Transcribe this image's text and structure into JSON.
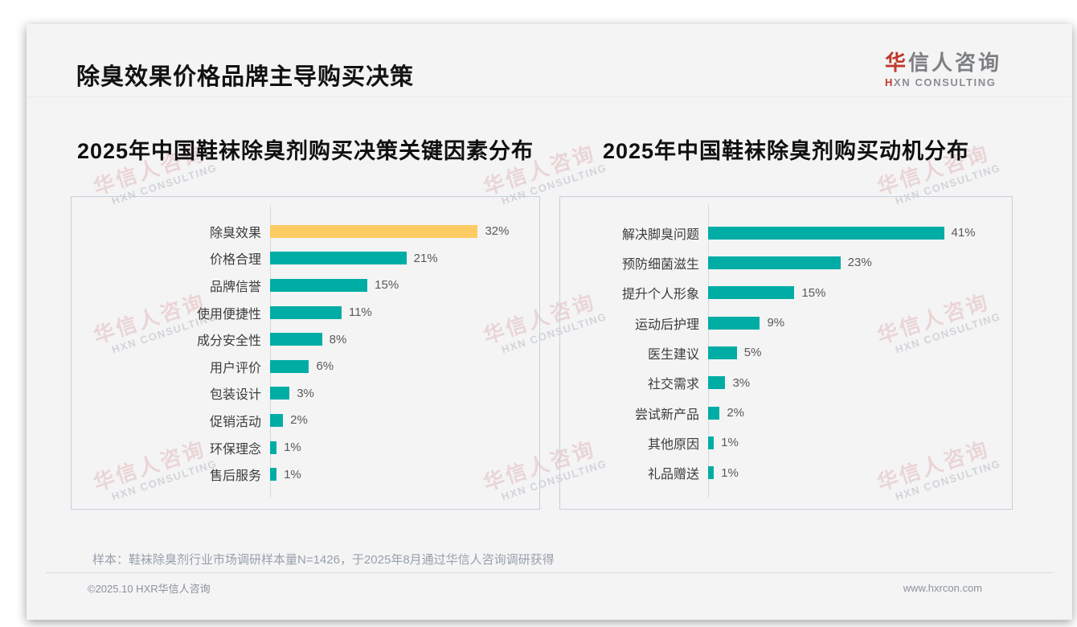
{
  "header": {
    "title": "除臭效果价格品牌主导购买决策",
    "logo": {
      "cn_accent": "华",
      "cn_rest": "信人咨询",
      "en_accent": "H",
      "en_rest": "XN CONSULTING"
    }
  },
  "watermark": {
    "line1": "华信人咨询",
    "line2": "HXN CONSULTING"
  },
  "colors": {
    "bar_teal": "#00ADA4",
    "bar_highlight": "#FCCC62",
    "brand_red": "#C0392B"
  },
  "chart_data": [
    {
      "type": "bar",
      "orientation": "horizontal",
      "title": "2025年中国鞋袜除臭剂购买决策关键因素分布",
      "categories": [
        "除臭效果",
        "价格合理",
        "品牌信誉",
        "使用便捷性",
        "成分安全性",
        "用户评价",
        "包装设计",
        "促销活动",
        "环保理念",
        "售后服务"
      ],
      "values": [
        32,
        21,
        15,
        11,
        8,
        6,
        3,
        2,
        1,
        1
      ],
      "value_labels": [
        "32%",
        "21%",
        "15%",
        "11%",
        "8%",
        "6%",
        "3%",
        "2%",
        "1%",
        "1%"
      ],
      "unit": "%",
      "highlight_index": 0,
      "bar_color": "#00ADA4",
      "highlight_color": "#FCCC62",
      "xlim": [
        0,
        39
      ],
      "grid": false,
      "value_label_position": "end-of-bar"
    },
    {
      "type": "bar",
      "orientation": "horizontal",
      "title": "2025年中国鞋袜除臭剂购买动机分布",
      "categories": [
        "解决脚臭问题",
        "预防细菌滋生",
        "提升个人形象",
        "运动后护理",
        "医生建议",
        "社交需求",
        "尝试新产品",
        "其他原因",
        "礼品赠送"
      ],
      "values": [
        41,
        23,
        15,
        9,
        5,
        3,
        2,
        1,
        1
      ],
      "value_labels": [
        "41%",
        "23%",
        "15%",
        "9%",
        "5%",
        "3%",
        "2%",
        "1%",
        "1%"
      ],
      "unit": "%",
      "highlight_index": null,
      "bar_color": "#00ADA4",
      "highlight_color": "#FCCC62",
      "xlim": [
        0,
        50
      ],
      "grid": false,
      "value_label_position": "end-of-bar"
    }
  ],
  "footer": {
    "note": "样本：鞋袜除臭剂行业市场调研样本量N=1426，于2025年8月通过华信人咨询调研获得",
    "copyright": "©2025.10 HXR华信人咨询",
    "website": "www.hxrcon.com"
  }
}
